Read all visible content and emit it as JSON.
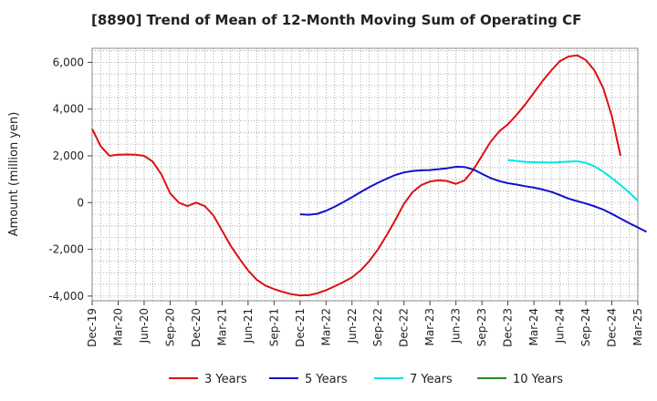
{
  "chart_data": {
    "type": "line",
    "title": "[8890]  Trend of Mean of 12-Month Moving Sum of Operating CF",
    "xlabel": "",
    "ylabel": "Amount (million yen)",
    "ylim": [
      -4200,
      6600
    ],
    "yticks": [
      -4000,
      -2000,
      0,
      2000,
      4000,
      6000
    ],
    "ytick_labels": [
      "-4,000",
      "-2,000",
      "0",
      "2,000",
      "4,000",
      "6,000"
    ],
    "x_categories": [
      "Dec-19",
      "Mar-20",
      "Jun-20",
      "Sep-20",
      "Dec-20",
      "Mar-21",
      "Jun-21",
      "Sep-21",
      "Dec-21",
      "Mar-22",
      "Jun-22",
      "Sep-22",
      "Dec-22",
      "Mar-23",
      "Jun-23",
      "Sep-23",
      "Dec-23",
      "Mar-24",
      "Jun-24",
      "Sep-24",
      "Dec-24",
      "Mar-25"
    ],
    "grid": true,
    "legend_position": "bottom",
    "series": [
      {
        "name": "3 Years",
        "color": "#dd1111",
        "start_index": 0,
        "values": [
          3150,
          2400,
          2000,
          2050,
          2060,
          2050,
          2000,
          1750,
          1200,
          400,
          0,
          -150,
          0,
          -150,
          -550,
          -1200,
          -1850,
          -2400,
          -2900,
          -3300,
          -3550,
          -3700,
          -3820,
          -3920,
          -3970,
          -3960,
          -3880,
          -3750,
          -3580,
          -3400,
          -3200,
          -2900,
          -2500,
          -2000,
          -1400,
          -750,
          -50,
          450,
          750,
          900,
          950,
          920,
          800,
          950,
          1400,
          2000,
          2600,
          3050,
          3350,
          3750,
          4200,
          4700,
          5200,
          5650,
          6050,
          6250,
          6300,
          6100,
          5650,
          4900,
          3700,
          2000
        ]
      },
      {
        "name": "5 Years",
        "color": "#1111cc",
        "start_index": 24,
        "values": [
          -500,
          -520,
          -480,
          -350,
          -180,
          20,
          230,
          450,
          660,
          850,
          1020,
          1180,
          1290,
          1350,
          1380,
          1390,
          1430,
          1470,
          1530,
          1520,
          1420,
          1230,
          1050,
          920,
          830,
          770,
          700,
          640,
          560,
          460,
          320,
          170,
          60,
          -40,
          -160,
          -300,
          -480,
          -680,
          -880,
          -1060,
          -1250
        ]
      },
      {
        "name": "7 Years",
        "color": "#00e5e5",
        "start_index": 48,
        "values": [
          1820,
          1780,
          1740,
          1720,
          1720,
          1710,
          1730,
          1750,
          1770,
          1700,
          1550,
          1320,
          1050,
          750,
          430,
          80
        ]
      },
      {
        "name": "10 Years",
        "color": "#228B22",
        "start_index": 0,
        "values": []
      }
    ]
  }
}
